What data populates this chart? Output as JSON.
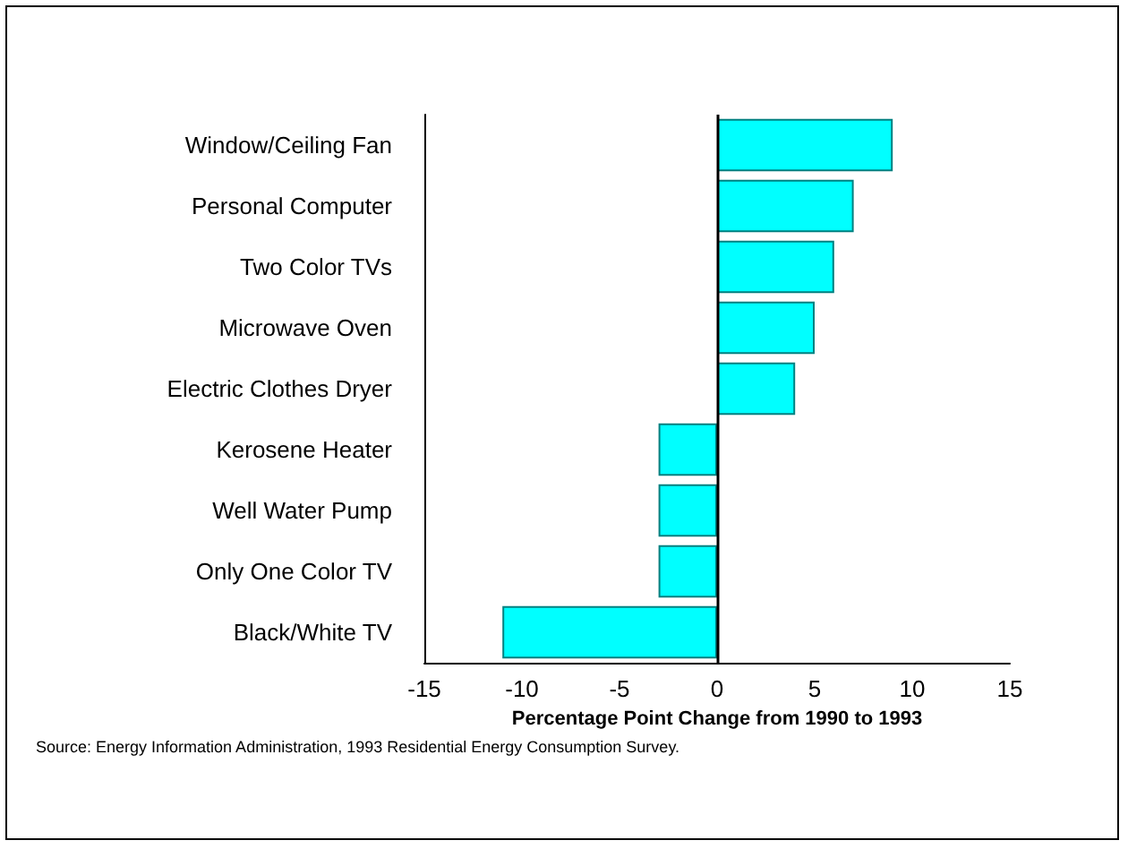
{
  "chart_data": {
    "type": "bar",
    "orientation": "horizontal",
    "categories": [
      "Window/Ceiling Fan",
      "Personal Computer",
      "Two Color TVs",
      "Microwave Oven",
      "Electric Clothes Dryer",
      "Kerosene Heater",
      "Well Water Pump",
      "Only One Color TV",
      "Black/White TV"
    ],
    "values": [
      9,
      7,
      6,
      5,
      4,
      -3,
      -3,
      -3,
      -11
    ],
    "color": "#00ffff",
    "xlim": [
      -15,
      15
    ],
    "xticks": [
      -15,
      -10,
      -5,
      0,
      5,
      10,
      15
    ],
    "xlabel": "Percentage Point Change from 1990 to 1993",
    "ref_lines": [
      {
        "axis": "x",
        "value": 0,
        "color": "#000000"
      }
    ],
    "annotations": [
      "Source:  Energy Information Administration, 1993 Residential Energy Consumption Survey."
    ]
  }
}
